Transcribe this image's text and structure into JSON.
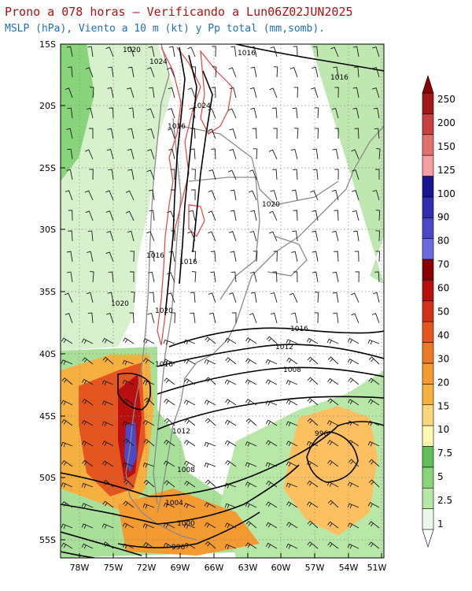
{
  "title": "Prono a 078 horas — Verificando a Lun06Z02JUN2025",
  "subtitle": "MSLP (hPa), Viento a 10 m (kt) y Pp total (mm,somb).",
  "colors": {
    "title": "#b01010",
    "subtitle": "#1f6fb8",
    "coast": "#8a8a8a",
    "isobar": "#000000",
    "terrain_red": "#e84040",
    "scale": [
      "#e9fbe7",
      "#b7e8a5",
      "#88d47a",
      "#5fbf58",
      "#fff9b0",
      "#fdd67d",
      "#f5b03f",
      "#f39a30",
      "#ee7a25",
      "#e45520",
      "#d43018",
      "#b81010",
      "#8b0000",
      "#6a6ae0",
      "#4a4ac8",
      "#2e2eb0",
      "#161690",
      "#f4a0a0",
      "#e07070",
      "#c84040",
      "#a01818"
    ]
  },
  "y_ticks": [
    "15S",
    "20S",
    "25S",
    "30S",
    "35S",
    "40S",
    "45S",
    "50S",
    "55S"
  ],
  "x_ticks": [
    "78W",
    "75W",
    "72W",
    "69W",
    "66W",
    "63W",
    "60W",
    "57W",
    "54W",
    "51W"
  ],
  "isobar_labels": [
    "1020",
    "1024",
    "1016",
    "1016",
    "1024",
    "1016",
    "1020",
    "1016",
    "1016",
    "1020",
    "1020",
    "1016",
    "1012",
    "1008",
    "1016",
    "1012",
    "996",
    "1008",
    "1004",
    "1000",
    "996"
  ],
  "colorbar_labels": [
    "250",
    "200",
    "150",
    "125",
    "100",
    "90",
    "80",
    "70",
    "60",
    "50",
    "40",
    "30",
    "20",
    "15",
    "10",
    "7.5",
    "5",
    "2.5",
    "1"
  ],
  "chart_data": {
    "type": "heatmap",
    "title": "Prono a 078 horas — Verificando a Lun06Z02JUN2025",
    "subtitle": "MSLP (hPa), Viento a 10 m (kt) y Pp total (mm,somb).",
    "lat_range": [
      "15S",
      "56S"
    ],
    "lon_range": [
      "79W",
      "50W"
    ],
    "precip_scale_mm": [
      1,
      2.5,
      5,
      7.5,
      10,
      15,
      20,
      30,
      40,
      50,
      60,
      70,
      80,
      90,
      100,
      125,
      150,
      200,
      250
    ],
    "isobar_values_hPa": [
      1024,
      1020,
      1016,
      1012,
      1008,
      1004,
      1000,
      996
    ],
    "lows": [
      {
        "lon": -56,
        "lat": -47.5,
        "value": 996
      },
      {
        "lon": -71,
        "lat": -55.5,
        "value": 996
      }
    ],
    "grid": true
  }
}
